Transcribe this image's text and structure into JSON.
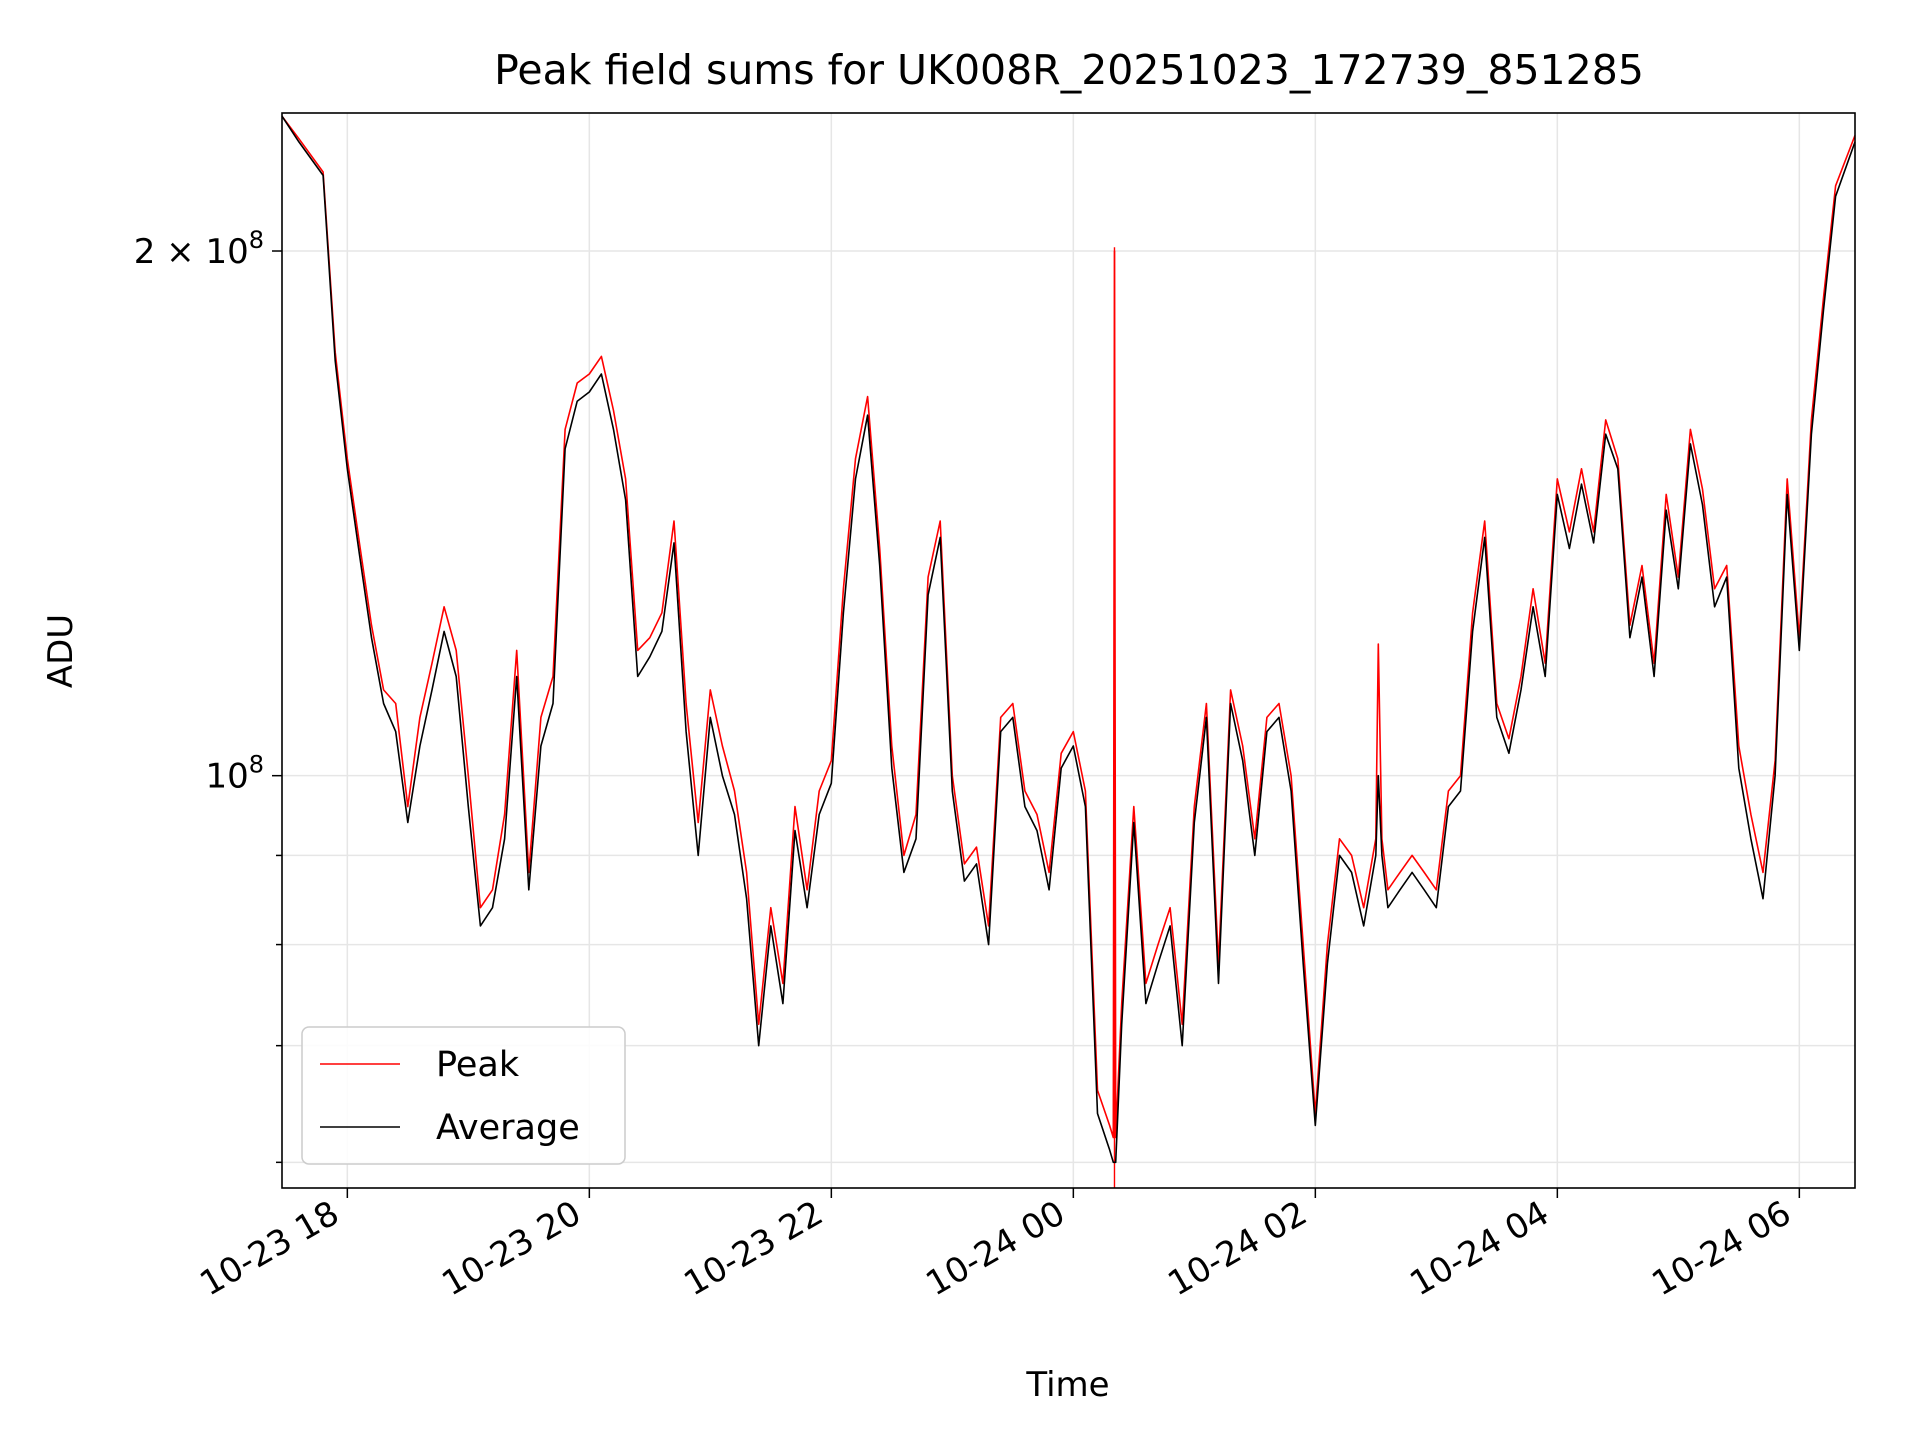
{
  "chart_data": {
    "type": "line",
    "title": "Peak field sums for UK008R_20251023_172739_851285",
    "xlabel": "Time",
    "ylabel": "ADU",
    "yscale": "log",
    "ylim": [
      58000000,
      240000000
    ],
    "xlim_hours": [
      17.46,
      30.46
    ],
    "x_unit": "hours since 2025-10-23 00:00",
    "grid": true,
    "legend_position": "lower-left",
    "x_ticks": [
      {
        "hour": 18,
        "label": "10-23 18"
      },
      {
        "hour": 20,
        "label": "10-23 20"
      },
      {
        "hour": 22,
        "label": "10-23 22"
      },
      {
        "hour": 24,
        "label": "10-24 00"
      },
      {
        "hour": 26,
        "label": "10-24 02"
      },
      {
        "hour": 28,
        "label": "10-24 04"
      },
      {
        "hour": 30,
        "label": "10-24 06"
      }
    ],
    "y_major_ticks": [
      {
        "value": 100000000,
        "base": "10",
        "exp": "8"
      },
      {
        "value": 200000000,
        "mant": "2 × ",
        "base": "10",
        "exp": "8"
      }
    ],
    "y_minor_ticks": [
      60000000,
      70000000,
      80000000,
      90000000
    ],
    "series": [
      {
        "name": "Peak",
        "color": "#ff0000",
        "x": [
          17.46,
          17.6,
          17.8,
          17.9,
          18.0,
          18.1,
          18.2,
          18.3,
          18.4,
          18.5,
          18.6,
          18.7,
          18.8,
          18.9,
          19.0,
          19.1,
          19.2,
          19.3,
          19.4,
          19.5,
          19.6,
          19.7,
          19.8,
          19.9,
          20.0,
          20.1,
          20.2,
          20.3,
          20.4,
          20.5,
          20.6,
          20.7,
          20.8,
          20.9,
          21.0,
          21.1,
          21.2,
          21.3,
          21.4,
          21.5,
          21.6,
          21.7,
          21.8,
          21.9,
          22.0,
          22.1,
          22.2,
          22.3,
          22.4,
          22.5,
          22.6,
          22.7,
          22.8,
          22.9,
          23.0,
          23.1,
          23.2,
          23.3,
          23.4,
          23.5,
          23.6,
          23.7,
          23.8,
          23.9,
          24.0,
          24.1,
          24.2,
          24.3,
          24.33,
          24.34,
          24.35,
          24.4,
          24.5,
          24.6,
          24.7,
          24.8,
          24.9,
          25.0,
          25.1,
          25.2,
          25.3,
          25.4,
          25.5,
          25.6,
          25.7,
          25.8,
          25.9,
          26.0,
          26.1,
          26.2,
          26.3,
          26.4,
          26.5,
          26.52,
          26.55,
          26.6,
          26.7,
          26.8,
          26.9,
          27.0,
          27.1,
          27.2,
          27.3,
          27.4,
          27.5,
          27.6,
          27.7,
          27.8,
          27.9,
          28.0,
          28.1,
          28.2,
          28.3,
          28.4,
          28.5,
          28.6,
          28.7,
          28.8,
          28.9,
          29.0,
          29.1,
          29.2,
          29.3,
          29.4,
          29.5,
          29.6,
          29.7,
          29.8,
          29.9,
          30.0,
          30.1,
          30.2,
          30.3,
          30.46
        ],
        "y": [
          239000000,
          232000000,
          222000000,
          175000000,
          152000000,
          136000000,
          122000000,
          112000000,
          110000000,
          96000000,
          108000000,
          116000000,
          125000000,
          118000000,
          100000000,
          84000000,
          86000000,
          95000000,
          118000000,
          88000000,
          108000000,
          114000000,
          158000000,
          168000000,
          170000000,
          174000000,
          162000000,
          148000000,
          118000000,
          120000000,
          124000000,
          140000000,
          110000000,
          94000000,
          112000000,
          104000000,
          98000000,
          88000000,
          72000000,
          84000000,
          76000000,
          96000000,
          86000000,
          98000000,
          102000000,
          128000000,
          152000000,
          165000000,
          135000000,
          104000000,
          90000000,
          95000000,
          130000000,
          140000000,
          100000000,
          89000000,
          91000000,
          82000000,
          108000000,
          110000000,
          98000000,
          95000000,
          88000000,
          103000000,
          106000000,
          98000000,
          66000000,
          63000000,
          62000000,
          200000000,
          62000000,
          74000000,
          96000000,
          76000000,
          80000000,
          84000000,
          72000000,
          96000000,
          110000000,
          78000000,
          112000000,
          104000000,
          92000000,
          108000000,
          110000000,
          100000000,
          80000000,
          64000000,
          80000000,
          92000000,
          90000000,
          84000000,
          92000000,
          119000000,
          92000000,
          86000000,
          88000000,
          90000000,
          88000000,
          86000000,
          98000000,
          100000000,
          124000000,
          140000000,
          110000000,
          105000000,
          114000000,
          128000000,
          116000000,
          148000000,
          138000000,
          150000000,
          138000000,
          160000000,
          152000000,
          122000000,
          132000000,
          116000000,
          145000000,
          130000000,
          158000000,
          146000000,
          128000000,
          132000000,
          104000000,
          95000000,
          88000000,
          102000000,
          148000000,
          120000000,
          160000000,
          188000000,
          218000000,
          233000000
        ],
        "spike_line": {
          "hour": 24.34,
          "value": 201000000
        }
      },
      {
        "name": "Average",
        "color": "#000000",
        "x": [
          17.46,
          17.6,
          17.8,
          17.9,
          18.0,
          18.1,
          18.2,
          18.3,
          18.4,
          18.5,
          18.6,
          18.7,
          18.8,
          18.9,
          19.0,
          19.1,
          19.2,
          19.3,
          19.4,
          19.5,
          19.6,
          19.7,
          19.8,
          19.9,
          20.0,
          20.1,
          20.2,
          20.3,
          20.4,
          20.5,
          20.6,
          20.7,
          20.8,
          20.9,
          21.0,
          21.1,
          21.2,
          21.3,
          21.4,
          21.5,
          21.6,
          21.7,
          21.8,
          21.9,
          22.0,
          22.1,
          22.2,
          22.3,
          22.4,
          22.5,
          22.6,
          22.7,
          22.8,
          22.9,
          23.0,
          23.1,
          23.2,
          23.3,
          23.4,
          23.5,
          23.6,
          23.7,
          23.8,
          23.9,
          24.0,
          24.1,
          24.2,
          24.3,
          24.33,
          24.34,
          24.35,
          24.4,
          24.5,
          24.6,
          24.7,
          24.8,
          24.9,
          25.0,
          25.1,
          25.2,
          25.3,
          25.4,
          25.5,
          25.6,
          25.7,
          25.8,
          25.9,
          26.0,
          26.1,
          26.2,
          26.3,
          26.4,
          26.5,
          26.52,
          26.55,
          26.6,
          26.7,
          26.8,
          26.9,
          27.0,
          27.1,
          27.2,
          27.3,
          27.4,
          27.5,
          27.6,
          27.7,
          27.8,
          27.9,
          28.0,
          28.1,
          28.2,
          28.3,
          28.4,
          28.5,
          28.6,
          28.7,
          28.8,
          28.9,
          29.0,
          29.1,
          29.2,
          29.3,
          29.4,
          29.5,
          29.6,
          29.7,
          29.8,
          29.9,
          30.0,
          30.1,
          30.2,
          30.3,
          30.46
        ],
        "y": [
          239000000,
          231000000,
          221000000,
          173000000,
          150000000,
          134000000,
          120000000,
          110000000,
          106000000,
          94000000,
          104000000,
          112000000,
          121000000,
          114000000,
          96000000,
          82000000,
          84000000,
          92000000,
          114000000,
          86000000,
          104000000,
          110000000,
          154000000,
          164000000,
          166000000,
          170000000,
          158000000,
          144000000,
          114000000,
          117000000,
          121000000,
          136000000,
          106000000,
          90000000,
          108000000,
          100000000,
          95000000,
          85000000,
          70000000,
          82000000,
          74000000,
          93000000,
          84000000,
          95000000,
          99000000,
          124000000,
          148000000,
          161000000,
          132000000,
          101000000,
          88000000,
          92000000,
          127000000,
          137000000,
          98000000,
          87000000,
          89000000,
          80000000,
          106000000,
          108000000,
          96000000,
          93000000,
          86000000,
          101000000,
          104000000,
          96000000,
          64000000,
          61000000,
          60000000,
          60000000,
          60000000,
          72000000,
          94000000,
          74000000,
          78000000,
          82000000,
          70000000,
          94000000,
          108000000,
          76000000,
          110000000,
          102000000,
          90000000,
          106000000,
          108000000,
          98000000,
          78000000,
          63000000,
          78000000,
          90000000,
          88000000,
          82000000,
          90000000,
          100000000,
          90000000,
          84000000,
          86000000,
          88000000,
          86000000,
          84000000,
          96000000,
          98000000,
          121000000,
          137000000,
          108000000,
          103000000,
          112000000,
          125000000,
          114000000,
          145000000,
          135000000,
          147000000,
          136000000,
          157000000,
          150000000,
          120000000,
          130000000,
          114000000,
          142000000,
          128000000,
          155000000,
          143000000,
          125000000,
          130000000,
          101000000,
          92000000,
          85000000,
          100000000,
          145000000,
          118000000,
          157000000,
          185000000,
          215000000,
          231000000
        ]
      }
    ]
  }
}
